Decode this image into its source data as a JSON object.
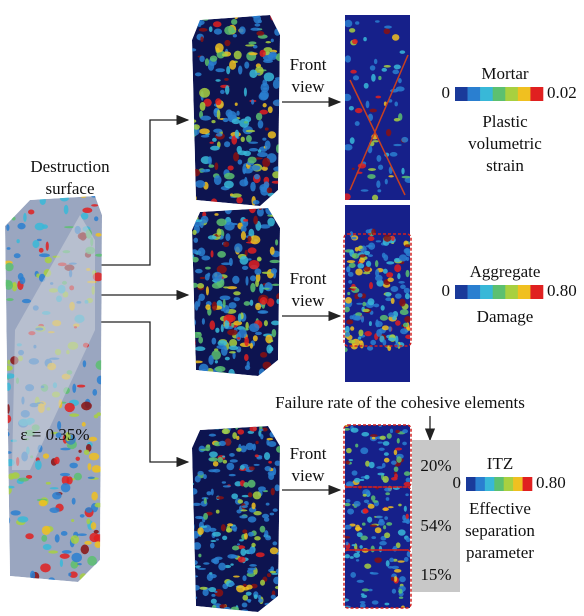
{
  "left": {
    "label_lines": [
      "Destruction",
      "surface"
    ],
    "strain": "ε = 0.35%"
  },
  "rows": [
    {
      "view_lines": [
        "Front",
        "view"
      ],
      "legend": {
        "material": "Mortar",
        "min": "0",
        "max": "0.02",
        "quantity_lines": [
          "Plastic",
          "volumetric",
          "strain"
        ]
      }
    },
    {
      "view_lines": [
        "Front",
        "view"
      ],
      "legend": {
        "material": "Aggregate",
        "min": "0",
        "max": "0.80",
        "quantity_lines": [
          "Damage"
        ]
      }
    },
    {
      "view_lines": [
        "Front",
        "view"
      ],
      "legend": {
        "material": "ITZ",
        "min": "0",
        "max": "0.80",
        "quantity_lines": [
          "Effective",
          "separation",
          "parameter"
        ]
      }
    }
  ],
  "failure_rate": {
    "title": "Failure rate of the cohesive elements",
    "values": [
      "20%",
      "54%",
      "15%"
    ]
  }
}
